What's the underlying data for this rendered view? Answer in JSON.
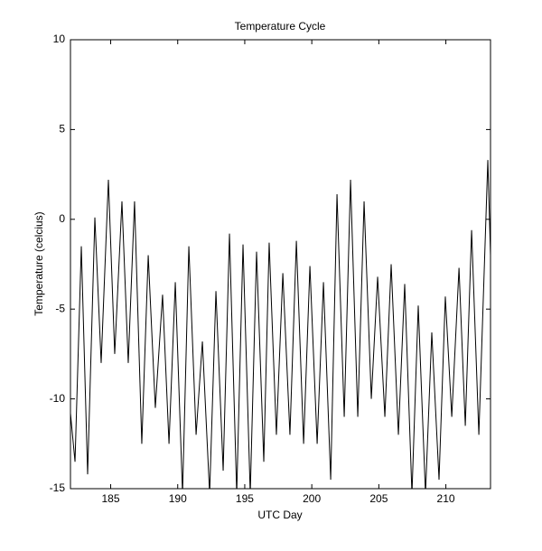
{
  "chart_data": {
    "type": "line",
    "title": "Temperature Cycle",
    "x_label": "UTC Day",
    "y_label": "Temperature (celcius)",
    "x": [
      182.0,
      182.34,
      182.81,
      183.28,
      183.82,
      184.29,
      184.83,
      185.3,
      185.84,
      186.31,
      186.78,
      187.32,
      187.8,
      188.33,
      188.87,
      189.35,
      189.82,
      190.36,
      190.83,
      191.37,
      191.84,
      192.38,
      192.85,
      193.39,
      193.86,
      194.4,
      194.87,
      195.41,
      195.88,
      196.42,
      196.82,
      197.36,
      197.84,
      198.37,
      198.85,
      199.39,
      199.86,
      200.4,
      200.87,
      201.41,
      201.88,
      202.42,
      202.89,
      203.43,
      203.9,
      204.44,
      204.91,
      205.45,
      205.92,
      206.46,
      206.93,
      207.47,
      207.94,
      208.48,
      208.95,
      209.49,
      209.96,
      210.44,
      210.98,
      211.45,
      211.92,
      212.46,
      213.13,
      213.33
    ],
    "values": [
      -10.8,
      -13.5,
      -1.5,
      -14.2,
      0.1,
      -8.0,
      2.2,
      -7.5,
      1.0,
      -8.0,
      1.0,
      -12.5,
      -2.0,
      -10.5,
      -4.2,
      -12.5,
      -3.5,
      -15.3,
      -1.5,
      -12.0,
      -6.8,
      -15.3,
      -4.0,
      -14.0,
      -0.8,
      -15.3,
      -1.4,
      -15.3,
      -1.8,
      -13.5,
      -1.3,
      -12.0,
      -3.0,
      -12.0,
      -1.2,
      -12.5,
      -2.6,
      -12.5,
      -3.5,
      -14.5,
      1.4,
      -11.0,
      2.2,
      -11.0,
      1.0,
      -10.0,
      -3.2,
      -11.0,
      -2.5,
      -12.0,
      -3.6,
      -15.3,
      -4.8,
      -15.3,
      -6.3,
      -14.5,
      -4.3,
      -11.0,
      -2.7,
      -11.5,
      -0.6,
      -12.0,
      3.3,
      -2.0
    ],
    "color": "#000000",
    "xlim": [
      182,
      213.33
    ],
    "ylim": [
      -15,
      10
    ],
    "xticks": [
      185,
      190,
      195,
      200,
      205,
      210
    ],
    "yticks": [
      -15,
      -10,
      -5,
      0,
      5,
      10
    ],
    "grid": false
  }
}
